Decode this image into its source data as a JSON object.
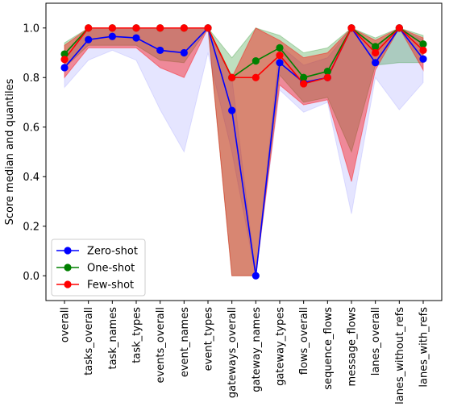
{
  "chart_data": {
    "type": "line",
    "title": "",
    "xlabel": "",
    "ylabel": "Score median and quantiles",
    "ylim": [
      -0.1,
      1.1
    ],
    "yticks": [
      0.0,
      0.2,
      0.4,
      0.6,
      0.8,
      1.0
    ],
    "ytick_labels": [
      "0.0",
      "0.2",
      "0.4",
      "0.6",
      "0.8",
      "1.0"
    ],
    "grid": false,
    "legend_position": "lower-left",
    "categories": [
      "overall",
      "tasks_overall",
      "task_names",
      "task_types",
      "events_overall",
      "event_names",
      "event_types",
      "gateways_overall",
      "gateway_names",
      "gateway_types",
      "flows_overall",
      "sequence_flows",
      "message_flows",
      "lanes_overall",
      "lanes_without_refs",
      "lanes_with_refs"
    ],
    "series": [
      {
        "name": "Zero-shot",
        "color": "#0000ff",
        "values": [
          0.84,
          0.953,
          0.966,
          0.96,
          0.91,
          0.9,
          1.0,
          0.667,
          0.0,
          0.86,
          0.78,
          0.8,
          1.0,
          0.86,
          1.0,
          0.875
        ],
        "band_low": [
          0.76,
          0.87,
          0.91,
          0.87,
          0.67,
          0.5,
          0.9,
          0.5,
          0.0,
          0.75,
          0.66,
          0.7,
          0.25,
          0.8,
          0.67,
          0.78
        ],
        "band_high": [
          0.9,
          1.0,
          1.0,
          1.0,
          1.0,
          1.0,
          1.0,
          0.8,
          0.0,
          0.93,
          0.85,
          0.88,
          1.0,
          0.92,
          1.0,
          0.95
        ],
        "band_color": "#0000ff",
        "band_opacity": 0.1
      },
      {
        "name": "One-shot",
        "color": "#008000",
        "values": [
          0.895,
          1.0,
          1.0,
          1.0,
          1.0,
          1.0,
          1.0,
          0.8,
          0.867,
          0.92,
          0.8,
          0.825,
          1.0,
          0.925,
          1.0,
          0.935
        ],
        "band_low": [
          0.84,
          0.93,
          0.93,
          0.93,
          0.87,
          0.86,
          1.0,
          0.0,
          0.0,
          0.81,
          0.7,
          0.72,
          0.5,
          0.85,
          0.86,
          0.86
        ],
        "band_high": [
          0.94,
          1.0,
          1.0,
          1.0,
          1.0,
          1.0,
          1.0,
          0.88,
          1.0,
          0.97,
          0.9,
          0.92,
          1.0,
          0.96,
          1.0,
          0.97
        ],
        "band_color": "#008000",
        "band_opacity": 0.25
      },
      {
        "name": "Few-shot",
        "color": "#ff0000",
        "values": [
          0.873,
          1.0,
          1.0,
          1.0,
          1.0,
          1.0,
          1.0,
          0.8,
          0.8,
          0.89,
          0.775,
          0.8,
          1.0,
          0.9,
          1.0,
          0.91
        ],
        "band_low": [
          0.8,
          0.92,
          0.92,
          0.92,
          0.84,
          0.8,
          1.0,
          0.0,
          0.0,
          0.77,
          0.69,
          0.71,
          0.38,
          0.83,
          1.0,
          0.83
        ],
        "band_high": [
          0.93,
          1.0,
          1.0,
          1.0,
          1.0,
          1.0,
          1.0,
          0.8,
          1.0,
          0.95,
          0.88,
          0.9,
          1.0,
          0.95,
          1.0,
          0.96
        ],
        "band_color": "#ff0000",
        "band_opacity": 0.4
      }
    ]
  }
}
